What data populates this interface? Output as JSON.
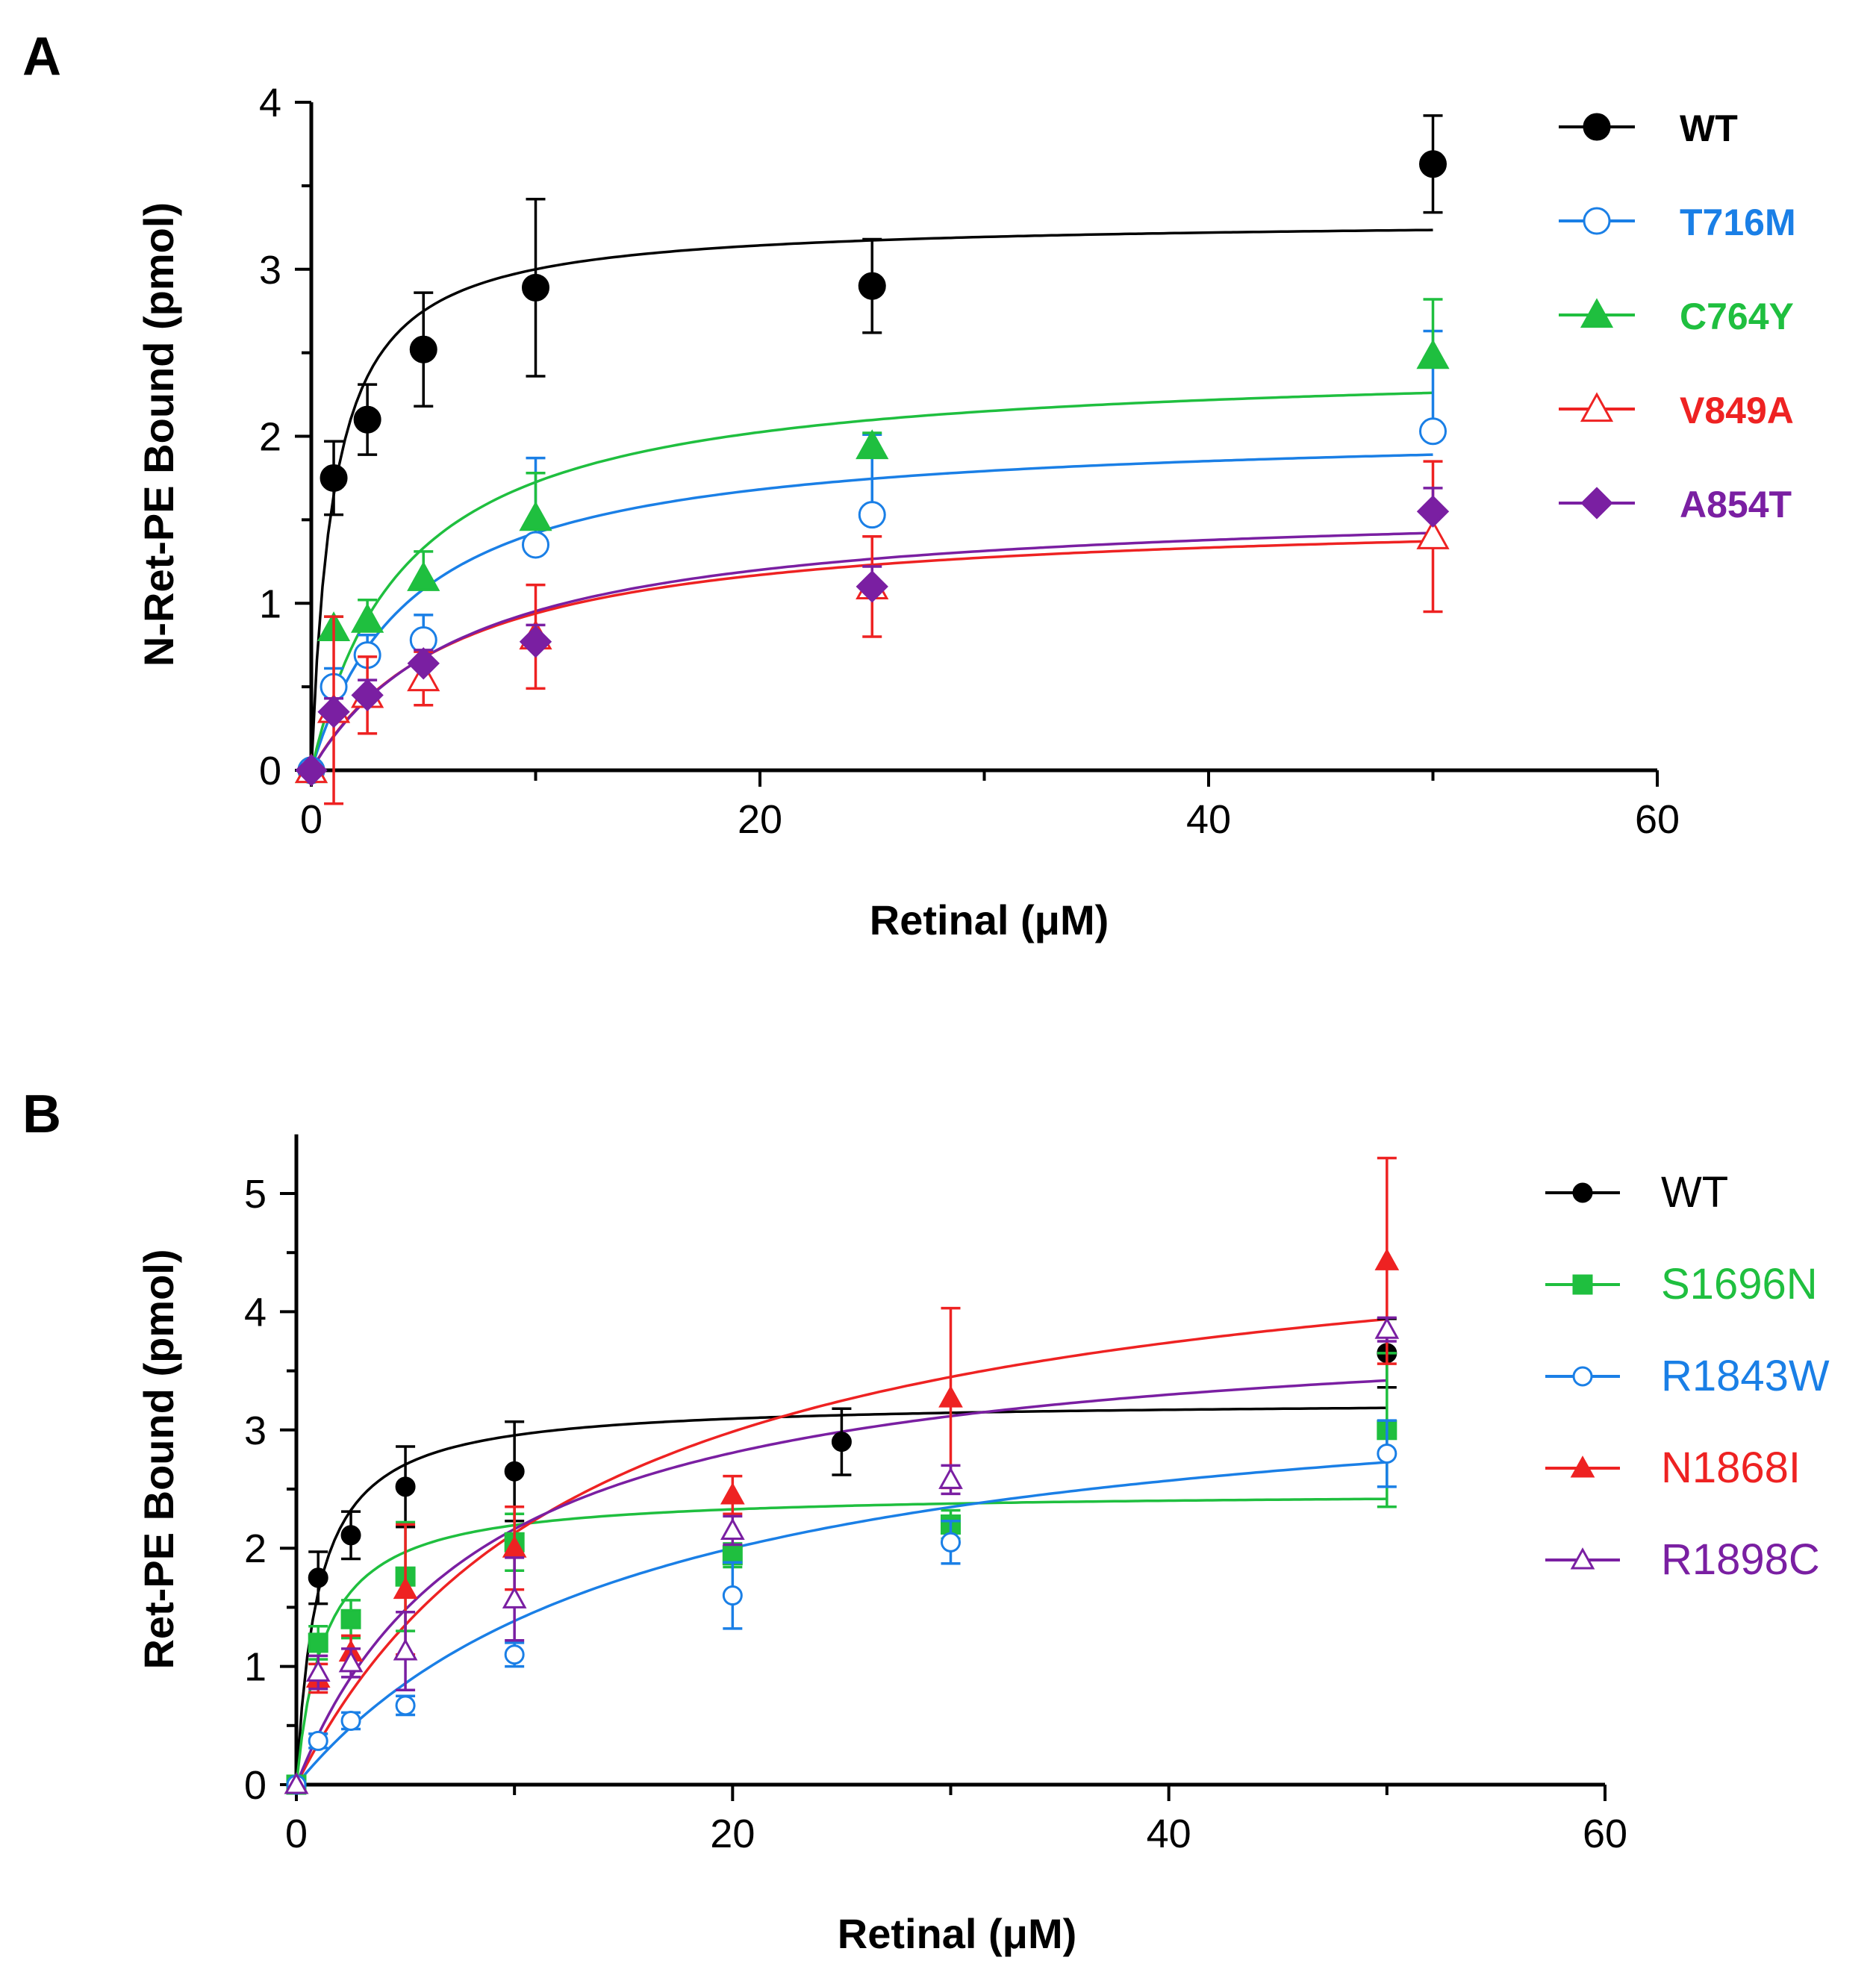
{
  "chart_data": [
    {
      "panel": "A",
      "type": "scatter",
      "xlabel": "Retinal (μM)",
      "ylabel": "N-Ret-PE Bound (pmol)",
      "xlim": [
        0,
        60
      ],
      "ylim": [
        0,
        4
      ],
      "xticks": [
        0,
        20,
        40,
        60
      ],
      "yticks": [
        0,
        1,
        2,
        3,
        4
      ],
      "legend_position": "right",
      "legend_bold": true,
      "series": [
        {
          "name": "WT",
          "color": "#000000",
          "marker": "circle",
          "filled": true,
          "fit": {
            "bmax": 3.3,
            "kd": 1.0
          },
          "x": [
            0,
            1,
            2.5,
            5,
            10,
            25,
            50
          ],
          "y": [
            0,
            1.75,
            2.1,
            2.52,
            2.89,
            2.9,
            3.63
          ],
          "err": [
            0,
            0.22,
            0.21,
            0.34,
            0.53,
            0.28,
            0.29
          ]
        },
        {
          "name": "T716M",
          "color": "#1a7fe6",
          "marker": "circle",
          "filled": false,
          "fit": {
            "bmax": 2.06,
            "kd": 4.5
          },
          "x": [
            0,
            1,
            2.5,
            5,
            10,
            25,
            50
          ],
          "y": [
            0,
            0.5,
            0.69,
            0.78,
            1.35,
            1.53,
            2.03
          ],
          "err": [
            0,
            0.11,
            0.12,
            0.15,
            0.52,
            0.48,
            0.6
          ]
        },
        {
          "name": "C764Y",
          "color": "#1fbf3f",
          "marker": "triangle",
          "filled": true,
          "fit": {
            "bmax": 2.45,
            "kd": 4.2
          },
          "x": [
            0,
            1,
            2.5,
            5,
            10,
            25,
            50
          ],
          "y": [
            0,
            0.85,
            0.9,
            1.15,
            1.51,
            1.94,
            2.48
          ],
          "err": [
            0,
            0.07,
            0.12,
            0.16,
            0.27,
            0.08,
            0.34
          ]
        },
        {
          "name": "V849A",
          "color": "#ee2222",
          "marker": "triangle",
          "filled": false,
          "fit": {
            "bmax": 1.55,
            "kd": 6.5
          },
          "x": [
            0,
            1,
            2.5,
            5,
            10,
            25,
            50
          ],
          "y": [
            0,
            0.36,
            0.45,
            0.55,
            0.8,
            1.1,
            1.4
          ],
          "err": [
            0,
            0.56,
            0.23,
            0.16,
            0.31,
            0.3,
            0.45
          ]
        },
        {
          "name": "A854T",
          "color": "#7a1fa2",
          "marker": "diamond",
          "filled": true,
          "fit": {
            "bmax": 1.62,
            "kd": 7.0
          },
          "x": [
            0,
            1,
            2.5,
            5,
            10,
            25,
            50
          ],
          "y": [
            0,
            0.35,
            0.45,
            0.64,
            0.77,
            1.1,
            1.55
          ],
          "err": [
            0,
            0.08,
            0.09,
            0.08,
            0.1,
            0.12,
            0.14
          ]
        }
      ]
    },
    {
      "panel": "B",
      "type": "scatter",
      "xlabel": "Retinal (μM)",
      "ylabel": "Ret-PE Bound (pmol)",
      "xlim": [
        0,
        60
      ],
      "ylim": [
        0,
        5.5
      ],
      "xticks": [
        0,
        20,
        40,
        60
      ],
      "yticks": [
        0,
        1,
        2,
        3,
        4,
        5
      ],
      "legend_position": "right",
      "legend_bold": false,
      "series": [
        {
          "name": "WT",
          "color": "#000000",
          "marker": "circle",
          "filled": true,
          "fit": {
            "bmax": 3.25,
            "kd": 1.0
          },
          "x": [
            0,
            1,
            2.5,
            5,
            10,
            25,
            50
          ],
          "y": [
            0,
            1.75,
            2.11,
            2.52,
            2.65,
            2.9,
            3.65
          ],
          "err": [
            0,
            0.22,
            0.2,
            0.34,
            0.42,
            0.28,
            0.29
          ]
        },
        {
          "name": "S1696N",
          "color": "#1fbf3f",
          "marker": "square",
          "filled": true,
          "fit": {
            "bmax": 2.48,
            "kd": 1.3
          },
          "x": [
            0,
            1,
            2.5,
            5,
            10,
            20,
            30,
            50
          ],
          "y": [
            0,
            1.2,
            1.4,
            1.76,
            2.05,
            1.94,
            2.2,
            3.0
          ],
          "err": [
            0,
            0.14,
            0.16,
            0.46,
            0.24,
            0.1,
            0.12,
            0.65
          ]
        },
        {
          "name": "R1843W",
          "color": "#1a7fe6",
          "marker": "circle",
          "filled": false,
          "fit": {
            "bmax": 3.6,
            "kd": 16.0
          },
          "x": [
            0,
            1,
            2.5,
            5,
            10,
            20,
            30,
            50
          ],
          "y": [
            0,
            0.37,
            0.54,
            0.67,
            1.1,
            1.6,
            2.05,
            2.8
          ],
          "err": [
            0,
            0.06,
            0.07,
            0.08,
            0.1,
            0.28,
            0.18,
            0.28
          ]
        },
        {
          "name": "N1868I",
          "color": "#ee2222",
          "marker": "triangle",
          "filled": true,
          "fit": {
            "bmax": 5.0,
            "kd": 13.5
          },
          "x": [
            0,
            1,
            2.5,
            5,
            10,
            20,
            30,
            50
          ],
          "y": [
            0,
            0.9,
            1.12,
            1.65,
            2.0,
            2.45,
            3.27,
            4.43
          ],
          "err": [
            0,
            0.12,
            0.14,
            0.55,
            0.35,
            0.16,
            0.76,
            0.87
          ]
        },
        {
          "name": "R1898C",
          "color": "#7a1fa2",
          "marker": "triangle",
          "filled": false,
          "fit": {
            "bmax": 4.0,
            "kd": 8.5
          },
          "x": [
            0,
            1,
            2.5,
            5,
            10,
            20,
            30,
            50
          ],
          "y": [
            0,
            0.95,
            1.03,
            1.13,
            1.57,
            2.15,
            2.58,
            3.85
          ],
          "err": [
            0,
            0.14,
            0.12,
            0.33,
            0.35,
            0.12,
            0.12,
            0.1
          ]
        }
      ]
    }
  ]
}
